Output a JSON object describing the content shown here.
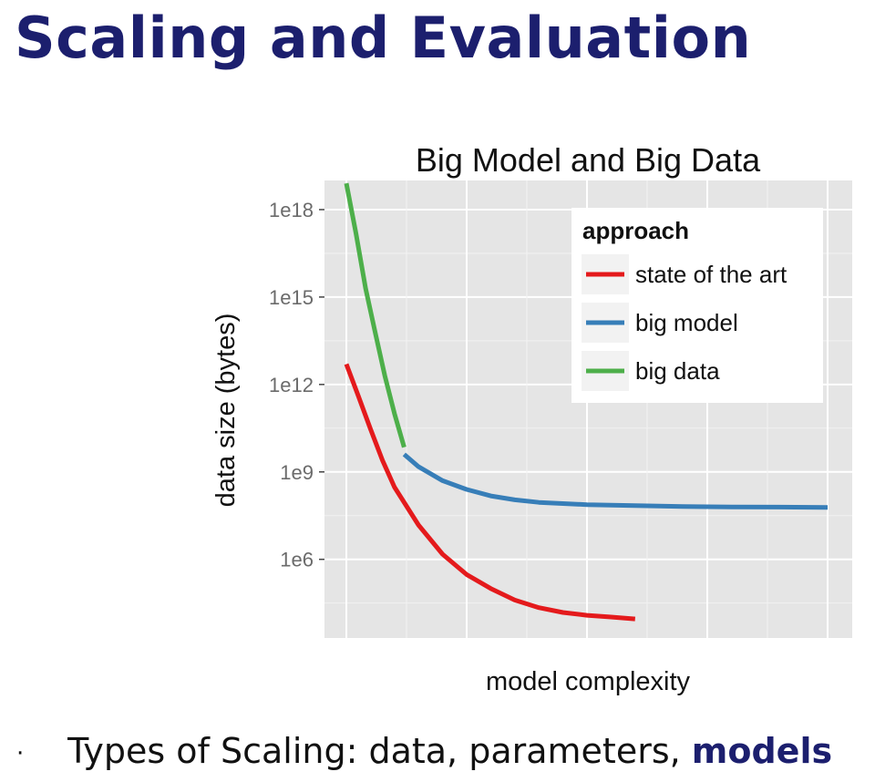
{
  "slide": {
    "title": "Scaling and Evaluation",
    "bullet_text": "Types of Scaling: data, parameters, ",
    "bullet_emphasis": "models",
    "accent_color": "#1c1f6e"
  },
  "chart_data": {
    "type": "line",
    "title": "Big Model and Big Data",
    "xlabel": "model complexity",
    "ylabel": "data size (bytes)",
    "x_tick_labels": false,
    "y_scale": "log10",
    "yticks": [
      1000000.0,
      1000000000.0,
      1000000000000.0,
      1000000000000000.0,
      1e+18
    ],
    "ytick_labels": [
      "1e6",
      "1e9",
      "1e12",
      "1e15",
      "1e18"
    ],
    "xlim": [
      0,
      10
    ],
    "ylim": [
      2000.0,
      1e+19
    ],
    "grid": true,
    "legend": {
      "title": "approach",
      "placement": "top-right"
    },
    "series": [
      {
        "name": "state of the art",
        "color": "#e41a1c",
        "x": [
          0,
          0.25,
          0.5,
          0.75,
          1.0,
          1.5,
          2.0,
          2.5,
          3.0,
          3.5,
          4.0,
          4.5,
          5.0,
          5.5,
          6.0
        ],
        "y": [
          5000000000000.0,
          400000000000.0,
          30000000000.0,
          2500000000.0,
          300000000.0,
          15000000.0,
          1500000.0,
          300000.0,
          100000.0,
          40000.0,
          22000.0,
          15000.0,
          12000.0,
          10500.0,
          9000.0
        ]
      },
      {
        "name": "big model",
        "color": "#377eb8",
        "x": [
          1.2,
          1.5,
          2.0,
          2.5,
          3.0,
          3.5,
          4.0,
          5.0,
          6.0,
          7.0,
          8.0,
          9.0,
          10.0
        ],
        "y": [
          4000000000.0,
          1500000000.0,
          500000000.0,
          250000000.0,
          150000000.0,
          110000000.0,
          90000000.0,
          75000000.0,
          70000000.0,
          65000000.0,
          63000000.0,
          62000000.0,
          60000000.0
        ]
      },
      {
        "name": "big data",
        "color": "#4daf4a",
        "x": [
          0,
          0.2,
          0.4,
          0.6,
          0.8,
          1.0,
          1.2
        ],
        "y": [
          8e+18,
          1.5e+17,
          2000000000000000.0,
          60000000000000.0,
          2000000000000.0,
          100000000000.0,
          7000000000.0
        ]
      }
    ]
  }
}
